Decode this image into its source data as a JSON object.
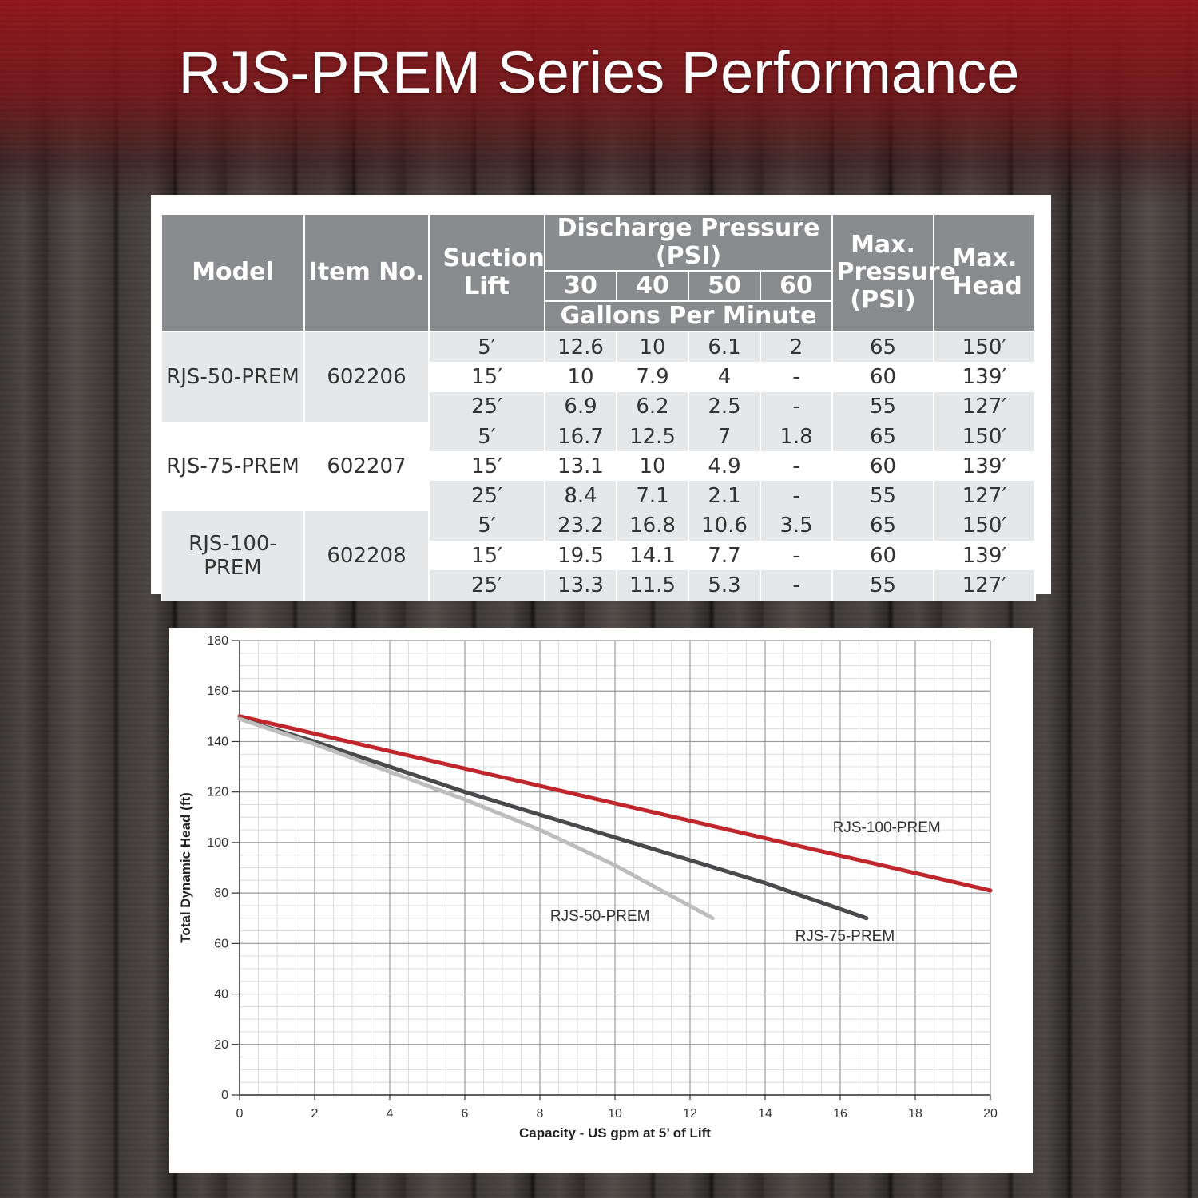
{
  "title": "RJS-PREM Series Performance",
  "colors": {
    "accent_red": "#c0272d",
    "dark_gray": "#4a4a4c",
    "light_gray": "#bdbdbd",
    "header_gray": "#8a8b8f"
  },
  "table": {
    "headers": {
      "model": "Model",
      "item_no": "Item No.",
      "suction_lift": "Suction Lift",
      "discharge_pressure": "Discharge Pressure (PSI)",
      "pressures": [
        "30",
        "40",
        "50",
        "60"
      ],
      "gpm": "Gallons Per Minute",
      "max_pressure": "Max. Pressure (PSI)",
      "max_head": "Max. Head"
    },
    "groups": [
      {
        "model": "RJS-50-PREM",
        "item_no": "602206",
        "rows": [
          {
            "lift": "5′",
            "p30": "12.6",
            "p40": "10",
            "p50": "6.1",
            "p60": "2",
            "max_pressure": "65",
            "max_head": "150′"
          },
          {
            "lift": "15′",
            "p30": "10",
            "p40": "7.9",
            "p50": "4",
            "p60": "-",
            "max_pressure": "60",
            "max_head": "139′"
          },
          {
            "lift": "25′",
            "p30": "6.9",
            "p40": "6.2",
            "p50": "2.5",
            "p60": "-",
            "max_pressure": "55",
            "max_head": "127′"
          }
        ]
      },
      {
        "model": "RJS-75-PREM",
        "item_no": "602207",
        "rows": [
          {
            "lift": "5′",
            "p30": "16.7",
            "p40": "12.5",
            "p50": "7",
            "p60": "1.8",
            "max_pressure": "65",
            "max_head": "150′"
          },
          {
            "lift": "15′",
            "p30": "13.1",
            "p40": "10",
            "p50": "4.9",
            "p60": "-",
            "max_pressure": "60",
            "max_head": "139′"
          },
          {
            "lift": "25′",
            "p30": "8.4",
            "p40": "7.1",
            "p50": "2.1",
            "p60": "-",
            "max_pressure": "55",
            "max_head": "127′"
          }
        ]
      },
      {
        "model": "RJS-100-PREM",
        "item_no": "602208",
        "rows": [
          {
            "lift": "5′",
            "p30": "23.2",
            "p40": "16.8",
            "p50": "10.6",
            "p60": "3.5",
            "max_pressure": "65",
            "max_head": "150′"
          },
          {
            "lift": "15′",
            "p30": "19.5",
            "p40": "14.1",
            "p50": "7.7",
            "p60": "-",
            "max_pressure": "60",
            "max_head": "139′"
          },
          {
            "lift": "25′",
            "p30": "13.3",
            "p40": "11.5",
            "p50": "5.3",
            "p60": "-",
            "max_pressure": "55",
            "max_head": "127′"
          }
        ]
      }
    ]
  },
  "chart_data": {
    "type": "line",
    "title": "",
    "xlabel": "Capacity - US gpm at 5’ of Lift",
    "ylabel": "Total Dynamic Head (ft)",
    "xlim": [
      0,
      20
    ],
    "ylim": [
      0,
      180
    ],
    "xticks": [
      0,
      2,
      4,
      6,
      8,
      10,
      12,
      14,
      16,
      18,
      20
    ],
    "yticks": [
      0,
      20,
      40,
      60,
      80,
      100,
      120,
      140,
      160,
      180
    ],
    "grid": true,
    "series": [
      {
        "name": "RJS-100-PREM",
        "color": "#c0272d",
        "x": [
          0,
          20
        ],
        "y": [
          150,
          81
        ]
      },
      {
        "name": "RJS-75-PREM",
        "color": "#4a4a4c",
        "x": [
          0,
          2,
          4,
          6,
          8,
          10,
          12,
          14,
          16.7
        ],
        "y": [
          149,
          140,
          130,
          120,
          111,
          102,
          93,
          84,
          70
        ]
      },
      {
        "name": "RJS-50-PREM",
        "color": "#bdbdbd",
        "x": [
          0,
          2,
          4,
          6,
          8,
          10,
          12.6
        ],
        "y": [
          149,
          139,
          128,
          117,
          105,
          91,
          70
        ]
      }
    ]
  }
}
